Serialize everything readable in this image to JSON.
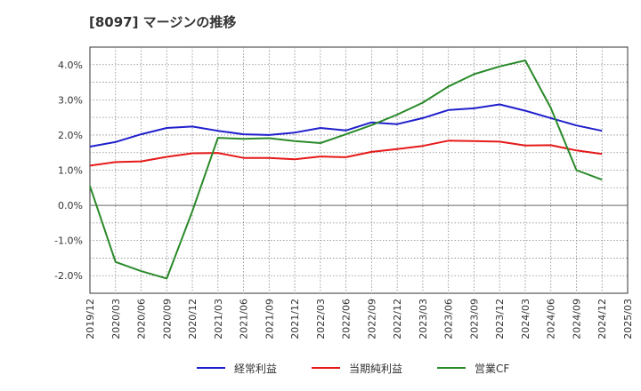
{
  "chart_data": {
    "type": "line",
    "title": "[8097]  マージンの推移",
    "x": [
      "2019/12",
      "2020/03",
      "2020/06",
      "2020/09",
      "2020/12",
      "2021/03",
      "2021/06",
      "2021/09",
      "2021/12",
      "2022/03",
      "2022/06",
      "2022/09",
      "2022/12",
      "2023/03",
      "2023/06",
      "2023/09",
      "2023/12",
      "2024/03",
      "2024/06",
      "2024/09",
      "2024/12"
    ],
    "x_ticks": [
      "2019/12",
      "2020/03",
      "2020/06",
      "2020/09",
      "2020/12",
      "2021/03",
      "2021/06",
      "2021/09",
      "2021/12",
      "2022/03",
      "2022/06",
      "2022/09",
      "2022/12",
      "2023/03",
      "2023/06",
      "2023/09",
      "2023/12",
      "2024/03",
      "2024/06",
      "2024/09",
      "2024/12",
      "2025/03"
    ],
    "y_ticks": [
      -2.0,
      -1.0,
      0.0,
      1.0,
      2.0,
      3.0,
      4.0
    ],
    "y_tick_labels": [
      "-2.0%",
      "-1.0%",
      "0.0%",
      "1.0%",
      "2.0%",
      "3.0%",
      "4.0%"
    ],
    "ylim": [
      -2.5,
      4.5
    ],
    "xlabel": "",
    "ylabel": "",
    "grid": true,
    "legend_position": "bottom",
    "series": [
      {
        "name": "経常利益",
        "color": "#1f1fcc",
        "values": [
          1.67,
          1.8,
          2.02,
          2.2,
          2.24,
          2.12,
          2.02,
          2.0,
          2.07,
          2.2,
          2.13,
          2.36,
          2.31,
          2.48,
          2.71,
          2.76,
          2.87,
          2.69,
          2.48,
          2.27,
          2.12
        ]
      },
      {
        "name": "当期純利益",
        "color": "#e61919",
        "values": [
          1.13,
          1.23,
          1.25,
          1.38,
          1.48,
          1.49,
          1.35,
          1.35,
          1.31,
          1.39,
          1.37,
          1.52,
          1.6,
          1.69,
          1.84,
          1.83,
          1.81,
          1.7,
          1.71,
          1.56,
          1.46
        ]
      },
      {
        "name": "営業CF",
        "color": "#2a8a2a",
        "values": [
          0.55,
          -1.61,
          -1.87,
          -2.08,
          -0.17,
          1.92,
          1.89,
          1.91,
          1.83,
          1.77,
          2.02,
          2.28,
          2.58,
          2.92,
          3.38,
          3.73,
          3.95,
          4.12,
          2.77,
          1.0,
          0.73
        ]
      }
    ]
  }
}
